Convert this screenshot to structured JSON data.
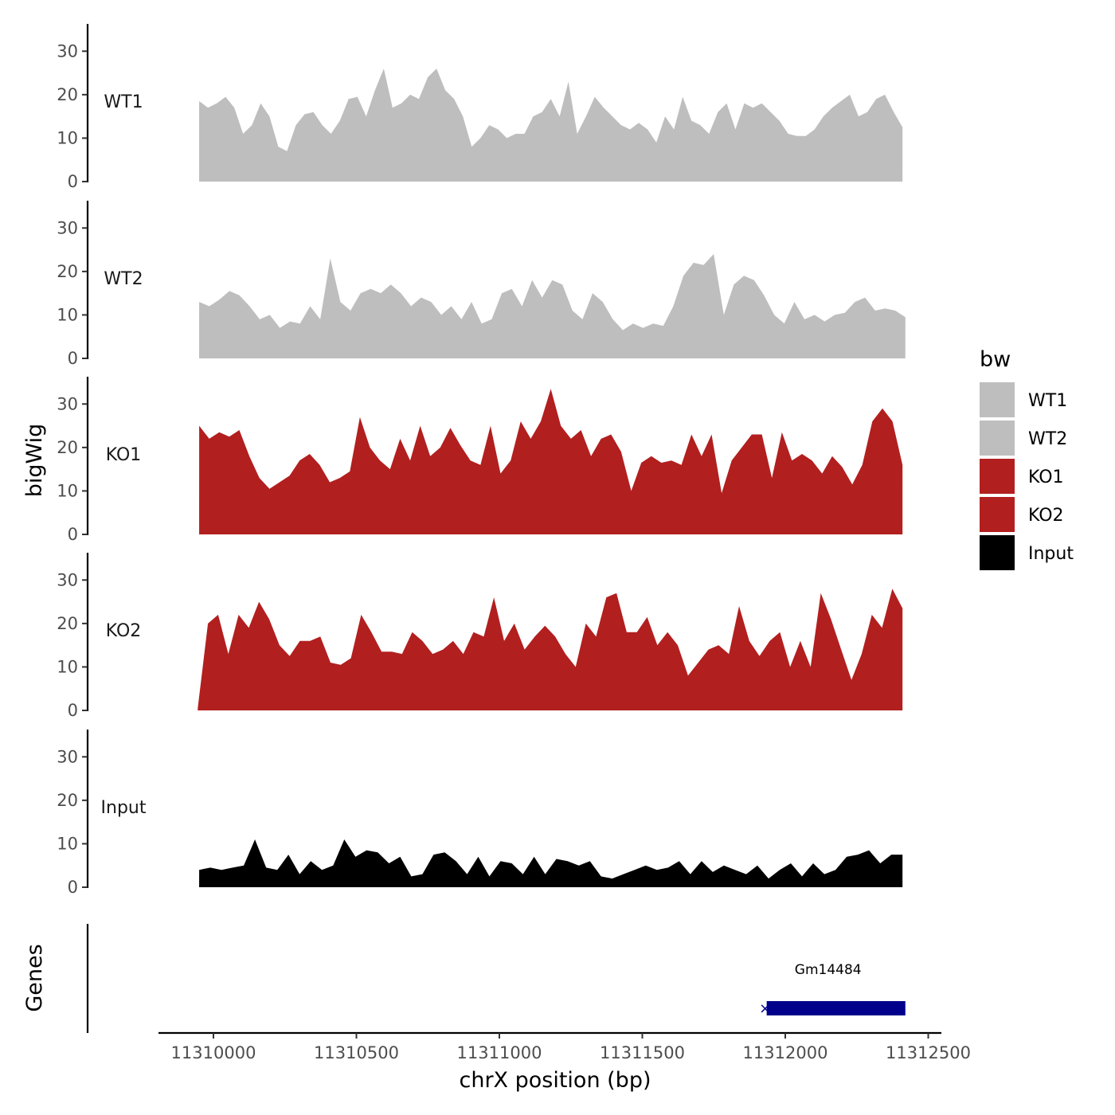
{
  "chart_data": {
    "type": "area",
    "xlabel": "chrX position (bp)",
    "ylabel": "bigWig",
    "genes_label": "Genes",
    "x_ticks": [
      "11310000",
      "11310500",
      "11311000",
      "11311500",
      "11312000",
      "11312500"
    ],
    "xlim": [
      11309800,
      11312550
    ],
    "ylim": [
      0,
      35
    ],
    "y_ticks": [
      "0",
      "10",
      "20",
      "30"
    ],
    "legend": {
      "title": "bw",
      "position": "right",
      "entries": [
        {
          "name": "WT1",
          "color": "#bebebe"
        },
        {
          "name": "WT2",
          "color": "#bebebe"
        },
        {
          "name": "KO1",
          "color": "#b21f1f"
        },
        {
          "name": "KO2",
          "color": "#b21f1f"
        },
        {
          "name": "Input",
          "color": "#000000"
        }
      ]
    },
    "series": [
      {
        "name": "WT1",
        "color": "#bebebe",
        "x_start": 11309950,
        "x_end": 11312410,
        "values": [
          18.5,
          17.0,
          18.0,
          19.5,
          17.0,
          11.0,
          13.0,
          18.0,
          15.0,
          8.0,
          7.0,
          13.0,
          15.5,
          16.0,
          13.0,
          11.0,
          14.0,
          19.0,
          19.5,
          15.0,
          21.0,
          26.0,
          17.0,
          18.0,
          20.0,
          19.0,
          24.0,
          26.0,
          21.0,
          19.0,
          15.0,
          8.0,
          10.0,
          13.0,
          12.0,
          10.0,
          11.0,
          11.0,
          15.0,
          16.0,
          19.0,
          15.0,
          23.0,
          11.0,
          15.0,
          19.5,
          17.0,
          15.0,
          13.0,
          12.0,
          13.5,
          12.0,
          9.0,
          15.0,
          12.0,
          19.5,
          14.0,
          13.0,
          11.0,
          16.0,
          18.0,
          12.0,
          18.0,
          17.0,
          18.0,
          16.0,
          14.0,
          11.0,
          10.5,
          10.5,
          12.0,
          15.0,
          17.0,
          18.5,
          20.0,
          15.0,
          16.0,
          19.0,
          20.0,
          16.0,
          12.5
        ]
      },
      {
        "name": "WT2",
        "color": "#bebebe",
        "x_start": 11309950,
        "x_end": 11312420,
        "values": [
          13.0,
          12.0,
          13.5,
          15.5,
          14.5,
          12.0,
          9.0,
          10.0,
          7.0,
          8.5,
          8.0,
          12.0,
          9.0,
          23.0,
          13.0,
          11.0,
          15.0,
          16.0,
          15.0,
          17.0,
          15.0,
          12.0,
          14.0,
          13.0,
          10.0,
          12.0,
          9.0,
          13.0,
          8.0,
          9.0,
          15.0,
          16.0,
          12.0,
          18.0,
          14.0,
          18.0,
          17.0,
          11.0,
          9.0,
          15.0,
          13.0,
          9.0,
          6.5,
          8.0,
          7.0,
          8.0,
          7.5,
          12.0,
          19.0,
          22.0,
          21.5,
          24.0,
          10.0,
          17.0,
          19.0,
          18.0,
          14.5,
          10.0,
          8.0,
          13.0,
          9.0,
          10.0,
          8.5,
          10.0,
          10.5,
          13.0,
          14.0,
          11.0,
          11.5,
          11.0,
          9.5
        ]
      },
      {
        "name": "KO1",
        "color": "#b21f1f",
        "x_start": 11309950,
        "x_end": 11312410,
        "values": [
          25.0,
          22.0,
          23.5,
          22.5,
          24.0,
          18.0,
          13.0,
          10.5,
          12.0,
          13.5,
          17.0,
          18.5,
          16.0,
          12.0,
          13.0,
          14.5,
          27.0,
          20.0,
          17.0,
          15.0,
          22.0,
          17.0,
          25.0,
          18.0,
          20.0,
          24.5,
          20.5,
          17.0,
          16.0,
          25.0,
          14.0,
          17.0,
          26.0,
          22.0,
          26.0,
          33.5,
          25.0,
          22.0,
          24.0,
          18.0,
          22.0,
          23.0,
          19.0,
          10.0,
          16.5,
          18.0,
          16.5,
          17.0,
          16.0,
          23.0,
          18.0,
          23.0,
          9.5,
          17.0,
          20.0,
          23.0,
          23.0,
          13.0,
          23.5,
          17.0,
          18.5,
          17.0,
          14.0,
          18.0,
          15.5,
          11.5,
          16.0,
          26.0,
          29.0,
          26.0,
          16.0
        ]
      },
      {
        "name": "KO2",
        "color": "#b21f1f",
        "x_start": 11309945,
        "x_end": 11312410,
        "values": [
          0.5,
          20.0,
          22.0,
          13.0,
          22.0,
          19.0,
          25.0,
          21.0,
          15.0,
          12.5,
          16.0,
          16.0,
          17.0,
          11.0,
          10.5,
          12.0,
          22.0,
          18.0,
          13.5,
          13.5,
          13.0,
          18.0,
          16.0,
          13.0,
          14.0,
          16.0,
          13.0,
          18.0,
          17.0,
          26.0,
          16.0,
          20.0,
          14.0,
          17.0,
          19.5,
          17.0,
          13.0,
          10.0,
          20.0,
          17.0,
          26.0,
          27.0,
          18.0,
          18.0,
          21.5,
          15.0,
          18.0,
          15.0,
          8.0,
          11.0,
          14.0,
          15.0,
          13.0,
          24.0,
          16.0,
          12.5,
          16.0,
          18.0,
          10.0,
          16.0,
          10.0,
          27.0,
          21.0,
          14.0,
          7.0,
          13.0,
          22.0,
          19.0,
          28.0,
          23.5
        ]
      },
      {
        "name": "Input",
        "color": "#000000",
        "x_start": 11309950,
        "x_end": 11312410,
        "values": [
          4.0,
          4.5,
          4.0,
          4.5,
          5.0,
          11.0,
          4.5,
          4.0,
          7.5,
          3.0,
          6.0,
          4.0,
          5.0,
          11.0,
          7.0,
          8.5,
          8.0,
          5.5,
          7.0,
          2.5,
          3.0,
          7.5,
          8.0,
          6.0,
          3.0,
          7.0,
          2.5,
          6.0,
          5.5,
          3.0,
          7.0,
          3.0,
          6.5,
          6.0,
          5.0,
          6.0,
          2.5,
          2.0,
          3.0,
          4.0,
          5.0,
          4.0,
          4.5,
          6.0,
          3.0,
          6.0,
          3.5,
          5.0,
          4.0,
          3.0,
          5.0,
          2.0,
          4.0,
          5.5,
          2.5,
          5.5,
          3.0,
          4.0,
          7.0,
          7.5,
          8.5,
          5.5,
          7.5,
          7.5
        ]
      }
    ],
    "genes": [
      {
        "name": "Gm14484",
        "start": 11311935,
        "end": 11312420,
        "color": "#00008b",
        "strand_mark": "×"
      }
    ]
  }
}
